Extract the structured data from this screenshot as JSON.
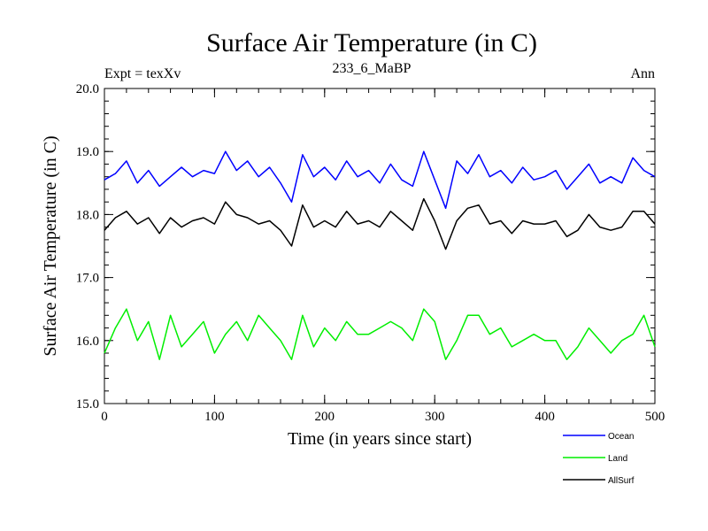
{
  "chart_data": {
    "type": "line",
    "title": "Surface Air Temperature (in C)",
    "subtitle_left": "Expt = texXv",
    "subtitle_center": "233_6_MaBP",
    "subtitle_right": "Ann",
    "xlabel": "Time (in years since start)",
    "ylabel": "Surface Air Temperature (in C)",
    "xlim": [
      0,
      500
    ],
    "ylim": [
      15.0,
      20.0
    ],
    "xticks": [
      0,
      100,
      200,
      300,
      400,
      500
    ],
    "xtick_labels": [
      "0",
      "100",
      "200",
      "300",
      "400",
      "500"
    ],
    "yticks": [
      15.0,
      16.0,
      17.0,
      18.0,
      19.0,
      20.0
    ],
    "ytick_labels": [
      "15.0",
      "16.0",
      "17.0",
      "18.0",
      "19.0",
      "20.0"
    ],
    "x": [
      0,
      10,
      20,
      30,
      40,
      50,
      60,
      70,
      80,
      90,
      100,
      110,
      120,
      130,
      140,
      150,
      160,
      170,
      180,
      190,
      200,
      210,
      220,
      230,
      240,
      250,
      260,
      270,
      280,
      290,
      300,
      310,
      320,
      330,
      340,
      350,
      360,
      370,
      380,
      390,
      400,
      410,
      420,
      430,
      440,
      450,
      460,
      470,
      480,
      490,
      500
    ],
    "series": [
      {
        "name": "Ocean",
        "color": "#0000ff",
        "values": [
          18.55,
          18.65,
          18.85,
          18.5,
          18.7,
          18.45,
          18.6,
          18.75,
          18.6,
          18.7,
          18.65,
          19.0,
          18.7,
          18.85,
          18.6,
          18.75,
          18.5,
          18.2,
          18.95,
          18.6,
          18.75,
          18.55,
          18.85,
          18.6,
          18.7,
          18.5,
          18.8,
          18.55,
          18.45,
          19.0,
          18.55,
          18.1,
          18.85,
          18.65,
          18.95,
          18.6,
          18.7,
          18.5,
          18.75,
          18.55,
          18.6,
          18.7,
          18.4,
          18.6,
          18.8,
          18.5,
          18.6,
          18.5,
          18.9,
          18.7,
          18.6
        ]
      },
      {
        "name": "Land",
        "color": "#00ee00",
        "values": [
          15.8,
          16.2,
          16.5,
          16.0,
          16.3,
          15.7,
          16.4,
          15.9,
          16.1,
          16.3,
          15.8,
          16.1,
          16.3,
          16.0,
          16.4,
          16.2,
          16.0,
          15.7,
          16.4,
          15.9,
          16.2,
          16.0,
          16.3,
          16.1,
          16.1,
          16.2,
          16.3,
          16.2,
          16.0,
          16.5,
          16.3,
          15.7,
          16.0,
          16.4,
          16.4,
          16.1,
          16.2,
          15.9,
          16.0,
          16.1,
          16.0,
          16.0,
          15.7,
          15.9,
          16.2,
          16.0,
          15.8,
          16.0,
          16.1,
          16.4,
          15.9
        ]
      },
      {
        "name": "AllSurf",
        "color": "#000000",
        "values": [
          17.75,
          17.95,
          18.05,
          17.85,
          17.95,
          17.7,
          17.95,
          17.8,
          17.9,
          17.95,
          17.85,
          18.2,
          18.0,
          17.95,
          17.85,
          17.9,
          17.75,
          17.5,
          18.15,
          17.8,
          17.9,
          17.8,
          18.05,
          17.85,
          17.9,
          17.8,
          18.05,
          17.9,
          17.75,
          18.25,
          17.9,
          17.45,
          17.9,
          18.1,
          18.15,
          17.85,
          17.9,
          17.7,
          17.9,
          17.85,
          17.85,
          17.9,
          17.65,
          17.75,
          18.0,
          17.8,
          17.75,
          17.8,
          18.05,
          18.05,
          17.85
        ]
      }
    ],
    "legend": {
      "placement": "bottom-right",
      "entries": [
        "Ocean",
        "Land",
        "AllSurf"
      ]
    }
  }
}
